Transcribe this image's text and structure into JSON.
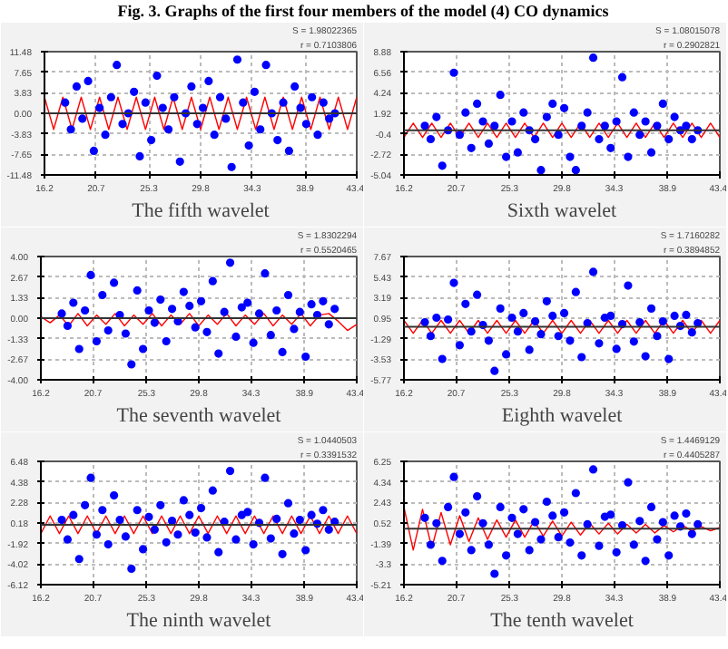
{
  "chart_data": [
    {
      "type": "scatter",
      "title": "Fig. 3. Graphs of the first four members of the model (4) CO dynamics",
      "xlabel": "The fifth wavelet",
      "grid": true,
      "marker": "circle",
      "x": [
        18.0,
        18.5,
        19.0,
        19.5,
        20.0,
        20.5,
        21.0,
        21.5,
        22.0,
        22.5,
        23.0,
        23.5,
        24.0,
        24.5,
        25.0,
        25.5,
        26.0,
        26.5,
        27.0,
        27.5,
        28.0,
        28.5,
        29.0,
        29.5,
        30.0,
        30.5,
        31.0,
        31.5,
        32.0,
        32.5,
        33.0,
        33.5,
        34.0,
        34.5,
        35.0,
        35.5,
        36.0,
        36.5,
        37.0,
        37.5,
        38.0,
        38.5,
        39.0,
        39.5,
        40.0,
        40.5,
        41.0,
        41.5
      ],
      "xlim": [
        16.2,
        43.4
      ],
      "xticks": [
        16.2,
        20.7,
        25.3,
        29.8,
        34.3,
        38.9,
        43.4
      ],
      "ylim": [
        -11.48,
        11.48
      ],
      "yticks": [
        -11.48,
        -7.65,
        -3.83,
        {
          "value": 0,
          "label": "0.00"
        },
        3.83,
        7.65,
        11.48
      ],
      "ref_lines": [
        {
          "axis": "y",
          "value": 0,
          "color": "#333333"
        }
      ],
      "annotations": [
        "S = 1.98022365",
        "r = 0.7103806"
      ],
      "series": [
        {
          "color": "#0000ff",
          "values": [
            2,
            -3,
            5,
            -1,
            6,
            -7,
            1,
            -4,
            3,
            9,
            -2,
            0,
            4,
            -8,
            2,
            -5,
            7,
            1,
            -3,
            3,
            -9,
            0,
            5,
            -2,
            1,
            6,
            -4,
            3,
            -1,
            -10,
            10,
            2,
            -6,
            4,
            -3,
            9,
            0,
            -5,
            2,
            -7,
            5,
            1,
            -2,
            3,
            -4,
            2,
            -1,
            0
          ]
        },
        {
          "type": "line",
          "color": "#ff0000",
          "x": [
            16.2,
            17.0,
            17.8,
            18.6,
            19.4,
            20.2,
            21.0,
            21.8,
            22.6,
            23.4,
            24.2,
            25.0,
            25.8,
            26.6,
            27.4,
            28.2,
            29.0,
            29.8,
            30.6,
            31.4,
            32.2,
            33.0,
            33.8,
            34.6,
            35.4,
            36.2,
            37.0,
            37.8,
            38.6,
            39.4,
            40.2,
            41.0,
            41.8,
            42.6,
            43.4
          ],
          "marker": "none",
          "values": [
            3,
            -3,
            3,
            -3,
            3,
            -3,
            3,
            -3,
            3,
            -3,
            3,
            -3,
            3,
            -3,
            3,
            -3,
            3,
            -3,
            3,
            -3,
            3,
            -3,
            3,
            -3,
            3,
            -3,
            3,
            -3,
            3,
            -3,
            3,
            -3,
            3,
            -3,
            3
          ]
        }
      ]
    },
    {
      "type": "scatter",
      "xlabel": "Sixth wavelet",
      "grid": true,
      "marker": "circle",
      "x": [
        18.0,
        18.5,
        19.0,
        19.5,
        20.0,
        20.5,
        21.0,
        21.5,
        22.0,
        22.5,
        23.0,
        23.5,
        24.0,
        24.5,
        25.0,
        25.5,
        26.0,
        26.5,
        27.0,
        27.5,
        28.0,
        28.5,
        29.0,
        29.5,
        30.0,
        30.5,
        31.0,
        31.5,
        32.0,
        32.5,
        33.0,
        33.5,
        34.0,
        34.5,
        35.0,
        35.5,
        36.0,
        36.5,
        37.0,
        37.5,
        38.0,
        38.5,
        39.0,
        39.5,
        40.0,
        40.5,
        41.0,
        41.5
      ],
      "xlim": [
        16.2,
        43.4
      ],
      "xticks": [
        16.2,
        20.7,
        25.3,
        29.8,
        34.3,
        38.9,
        43.4
      ],
      "ylim": [
        -5.04,
        8.88
      ],
      "yticks": [
        -5.04,
        -2.72,
        -0.4,
        1.92,
        4.24,
        6.56,
        8.88
      ],
      "ref_lines": [
        {
          "axis": "y",
          "value": 0,
          "color": "#333333"
        }
      ],
      "annotations": [
        "S = 1.08015078",
        "r = 0.2902821"
      ],
      "series": [
        {
          "color": "#0000ff",
          "values": [
            0.5,
            -1,
            1.5,
            -4,
            0,
            6.5,
            -0.5,
            2,
            -2,
            3,
            1,
            -1.5,
            0.5,
            4,
            -3,
            1,
            -2.5,
            2,
            0,
            -1,
            -4.5,
            1.5,
            3,
            -0.5,
            2.5,
            -3,
            -4.5,
            0.5,
            2,
            8.2,
            -1,
            0.5,
            -2,
            1,
            6,
            -3,
            2,
            -0.5,
            1,
            -2.5,
            0.5,
            3,
            -1,
            1.5,
            0,
            0.5,
            -1,
            0
          ]
        },
        {
          "type": "line",
          "color": "#ff0000",
          "x": [
            16.2,
            17.0,
            17.8,
            18.6,
            19.4,
            20.2,
            21.0,
            21.8,
            22.6,
            23.4,
            24.2,
            25.0,
            25.8,
            26.6,
            27.4,
            28.2,
            29.0,
            29.8,
            30.6,
            31.4,
            32.2,
            33.0,
            33.8,
            34.6,
            35.4,
            36.2,
            37.0,
            37.8,
            38.6,
            39.4,
            40.2,
            41.0,
            41.8,
            42.6,
            43.4
          ],
          "marker": "none",
          "values": [
            -0.8,
            0.8,
            -0.8,
            0.8,
            -0.8,
            0.8,
            -0.8,
            0.8,
            -0.8,
            0.8,
            -0.8,
            0.8,
            -0.8,
            0.8,
            -0.8,
            0.8,
            -0.8,
            0.8,
            -0.8,
            0.8,
            -0.8,
            0.8,
            -0.8,
            0.8,
            -0.8,
            0.8,
            -0.8,
            0.8,
            -0.8,
            0.8,
            -0.8,
            0.8,
            -0.8,
            0.8,
            -0.8
          ]
        }
      ]
    },
    {
      "type": "scatter",
      "xlabel": "The seventh wavelet",
      "grid": true,
      "marker": "circle",
      "x": [
        18.0,
        18.5,
        19.0,
        19.5,
        20.0,
        20.5,
        21.0,
        21.5,
        22.0,
        22.5,
        23.0,
        23.5,
        24.0,
        24.5,
        25.0,
        25.5,
        26.0,
        26.5,
        27.0,
        27.5,
        28.0,
        28.5,
        29.0,
        29.5,
        30.0,
        30.5,
        31.0,
        31.5,
        32.0,
        32.5,
        33.0,
        33.5,
        34.0,
        34.5,
        35.0,
        35.5,
        36.0,
        36.5,
        37.0,
        37.5,
        38.0,
        38.5,
        39.0,
        39.5,
        40.0,
        40.5,
        41.0,
        41.5
      ],
      "xlim": [
        16.2,
        43.4
      ],
      "xticks": [
        16.2,
        20.7,
        25.3,
        29.8,
        34.3,
        38.9,
        43.4
      ],
      "ylim": [
        -4.0,
        4.0
      ],
      "yticks": [
        {
          "value": -4,
          "label": "-4.00"
        },
        -2.67,
        -1.33,
        {
          "value": 0,
          "label": "0.00"
        },
        1.33,
        2.67,
        {
          "value": 4,
          "label": "4.00"
        }
      ],
      "ref_lines": [
        {
          "axis": "y",
          "value": 0,
          "color": "#333333"
        }
      ],
      "annotations": [
        "S = 1.8302294",
        "r = 0.5520465"
      ],
      "series": [
        {
          "color": "#0000ff",
          "values": [
            0.3,
            -0.5,
            1,
            -2,
            0.5,
            2.8,
            -1.5,
            1.5,
            -0.8,
            2.3,
            0.2,
            -1,
            -3,
            1.8,
            -2,
            0.5,
            -0.3,
            1.2,
            -1.5,
            0.6,
            -0.2,
            1.7,
            0.8,
            -0.6,
            1.1,
            -0.9,
            2.4,
            -2.3,
            0.4,
            3.6,
            -1.2,
            0.7,
            1,
            -1.6,
            0.3,
            2.9,
            -1.1,
            0.5,
            -2.2,
            1.5,
            -0.7,
            0.4,
            -2.5,
            0.9,
            0.2,
            1.1,
            -0.4,
            0.6
          ]
        },
        {
          "type": "line",
          "color": "#ff0000",
          "x": [
            16.2,
            17.0,
            17.8,
            18.6,
            19.4,
            20.2,
            21.0,
            21.8,
            22.6,
            23.4,
            24.2,
            25.0,
            25.8,
            26.6,
            27.4,
            28.2,
            29.0,
            29.8,
            30.6,
            31.4,
            32.2,
            33.0,
            33.8,
            34.6,
            35.4,
            36.2,
            37.0,
            37.8,
            38.6,
            39.4,
            40.2,
            41.0,
            41.8,
            42.6,
            43.4
          ],
          "marker": "none",
          "values": [
            0.1,
            -0.3,
            0.2,
            -0.5,
            0.3,
            -0.5,
            0.2,
            -0.4,
            0.3,
            -0.5,
            0.2,
            -0.4,
            0.3,
            -0.5,
            0.2,
            -0.4,
            0.3,
            -0.5,
            0.2,
            -0.4,
            0.3,
            -0.5,
            0.2,
            -0.4,
            0.3,
            -0.5,
            0.2,
            -0.4,
            0.3,
            -0.5,
            0.2,
            0.3,
            -0.2,
            -0.8,
            -0.4
          ]
        }
      ]
    },
    {
      "type": "scatter",
      "xlabel": "Eighth wavelet",
      "grid": true,
      "marker": "circle",
      "x": [
        18.0,
        18.5,
        19.0,
        19.5,
        20.0,
        20.5,
        21.0,
        21.5,
        22.0,
        22.5,
        23.0,
        23.5,
        24.0,
        24.5,
        25.0,
        25.5,
        26.0,
        26.5,
        27.0,
        27.5,
        28.0,
        28.5,
        29.0,
        29.5,
        30.0,
        30.5,
        31.0,
        31.5,
        32.0,
        32.5,
        33.0,
        33.5,
        34.0,
        34.5,
        35.0,
        35.5,
        36.0,
        36.5,
        37.0,
        37.5,
        38.0,
        38.5,
        39.0,
        39.5,
        40.0,
        40.5,
        41.0,
        41.5
      ],
      "xlim": [
        16.2,
        43.4
      ],
      "xticks": [
        16.2,
        20.7,
        25.3,
        29.8,
        34.3,
        38.9,
        43.4
      ],
      "ylim": [
        -5.77,
        7.67
      ],
      "yticks": [
        -5.77,
        -3.53,
        -1.29,
        0.95,
        3.19,
        5.43,
        7.67
      ],
      "ref_lines": [
        {
          "axis": "y",
          "value": 0,
          "color": "#333333"
        }
      ],
      "annotations": [
        "S = 1.7160282",
        "r = 0.3894852"
      ],
      "series": [
        {
          "color": "#0000ff",
          "values": [
            0.5,
            -1,
            1,
            -3.5,
            0.8,
            4.8,
            -2,
            2.5,
            -0.5,
            3.5,
            0.2,
            -1.5,
            -4.8,
            2,
            -3,
            1,
            -0.5,
            1.5,
            -2.5,
            0.6,
            -0.8,
            2.8,
            1.2,
            -1,
            1.5,
            -1.5,
            3.8,
            -3.3,
            0.4,
            6,
            -1.8,
            1,
            1.2,
            -2.4,
            0.3,
            4.5,
            -1.6,
            0.5,
            -3.2,
            2,
            -1,
            0.6,
            -3.5,
            1.2,
            0.1,
            1.3,
            -0.6,
            0.4
          ]
        },
        {
          "type": "line",
          "color": "#ff0000",
          "x": [
            16.2,
            17.0,
            17.8,
            18.6,
            19.4,
            20.2,
            21.0,
            21.8,
            22.6,
            23.4,
            24.2,
            25.0,
            25.8,
            26.6,
            27.4,
            28.2,
            29.0,
            29.8,
            30.6,
            31.4,
            32.2,
            33.0,
            33.8,
            34.6,
            35.4,
            36.2,
            37.0,
            37.8,
            38.6,
            39.4,
            40.2,
            41.0,
            41.8,
            42.6,
            43.4
          ],
          "marker": "none",
          "values": [
            0.7,
            -0.7,
            0.7,
            -0.7,
            0.7,
            -0.7,
            0.7,
            -0.7,
            0.7,
            -0.7,
            0.7,
            -0.7,
            0.7,
            -0.7,
            0.7,
            -0.7,
            0.7,
            -0.7,
            0.7,
            -0.7,
            0.7,
            -0.7,
            0.7,
            -0.7,
            0.7,
            -0.7,
            0.7,
            -0.7,
            0.7,
            -0.7,
            0.7,
            -0.7,
            0.7,
            -0.7,
            0.7
          ]
        }
      ]
    },
    {
      "type": "scatter",
      "xlabel": "The ninth wavelet",
      "grid": true,
      "marker": "circle",
      "x": [
        18.0,
        18.5,
        19.0,
        19.5,
        20.0,
        20.5,
        21.0,
        21.5,
        22.0,
        22.5,
        23.0,
        23.5,
        24.0,
        24.5,
        25.0,
        25.5,
        26.0,
        26.5,
        27.0,
        27.5,
        28.0,
        28.5,
        29.0,
        29.5,
        30.0,
        30.5,
        31.0,
        31.5,
        32.0,
        32.5,
        33.0,
        33.5,
        34.0,
        34.5,
        35.0,
        35.5,
        36.0,
        36.5,
        37.0,
        37.5,
        38.0,
        38.5,
        39.0,
        39.5,
        40.0,
        40.5,
        41.0,
        41.5
      ],
      "xlim": [
        16.2,
        43.4
      ],
      "xticks": [
        16.2,
        20.7,
        25.3,
        29.8,
        34.3,
        38.9,
        43.4
      ],
      "ylim": [
        -6.12,
        6.48
      ],
      "yticks": [
        -6.12,
        -4.02,
        -1.92,
        0.18,
        2.28,
        4.38,
        6.48
      ],
      "ref_lines": [
        {
          "axis": "y",
          "value": 0,
          "color": "#333333"
        }
      ],
      "annotations": [
        "S = 1.0440503",
        "r = 0.3391532"
      ],
      "series": [
        {
          "color": "#0000ff",
          "values": [
            0.5,
            -1.5,
            1,
            -3.5,
            2,
            4.8,
            -1,
            1.5,
            -2,
            3,
            0.5,
            -1.2,
            -4.5,
            1.5,
            -2.5,
            0.8,
            -0.5,
            2,
            -1.8,
            0.4,
            -1,
            2.5,
            1,
            -0.8,
            1.7,
            -1.3,
            3.5,
            -2.8,
            0.3,
            5.5,
            -1.5,
            1,
            1.3,
            -2,
            0.2,
            4.8,
            -1.4,
            0.6,
            -3,
            2.2,
            -0.9,
            0.5,
            -2.6,
            1,
            0.1,
            1.5,
            -0.5,
            0.3
          ]
        },
        {
          "type": "line",
          "color": "#ff0000",
          "x": [
            16.2,
            17.0,
            17.8,
            18.6,
            19.4,
            20.2,
            21.0,
            21.8,
            22.6,
            23.4,
            24.2,
            25.0,
            25.8,
            26.6,
            27.4,
            28.2,
            29.0,
            29.8,
            30.6,
            31.4,
            32.2,
            33.0,
            33.8,
            34.6,
            35.4,
            36.2,
            37.0,
            37.8,
            38.6,
            39.4,
            40.2,
            41.0,
            41.8,
            42.6,
            43.4
          ],
          "marker": "none",
          "values": [
            -0.9,
            0.9,
            -0.9,
            0.9,
            -0.9,
            0.9,
            -0.9,
            0.9,
            -0.9,
            0.9,
            -0.9,
            0.9,
            -0.9,
            0.9,
            -0.9,
            0.9,
            -0.9,
            0.9,
            -0.9,
            0.9,
            -0.9,
            0.9,
            -0.9,
            0.9,
            -0.9,
            0.9,
            -0.9,
            0.9,
            -0.9,
            0.9,
            -0.9,
            0.9,
            -0.9,
            0.9,
            -0.9
          ]
        }
      ]
    },
    {
      "type": "scatter",
      "xlabel": "The tenth wavelet",
      "grid": true,
      "marker": "circle",
      "x": [
        18.0,
        18.5,
        19.0,
        19.5,
        20.0,
        20.5,
        21.0,
        21.5,
        22.0,
        22.5,
        23.0,
        23.5,
        24.0,
        24.5,
        25.0,
        25.5,
        26.0,
        26.5,
        27.0,
        27.5,
        28.0,
        28.5,
        29.0,
        29.5,
        30.0,
        30.5,
        31.0,
        31.5,
        32.0,
        32.5,
        33.0,
        33.5,
        34.0,
        34.5,
        35.0,
        35.5,
        36.0,
        36.5,
        37.0,
        37.5,
        38.0,
        38.5,
        39.0,
        39.5,
        40.0,
        40.5,
        41.0,
        41.5
      ],
      "xlim": [
        16.2,
        43.4
      ],
      "xticks": [
        16.2,
        20.7,
        25.3,
        29.8,
        34.3,
        38.9,
        43.4
      ],
      "ylim": [
        -5.21,
        6.25
      ],
      "yticks": [
        -5.21,
        -3.3,
        -1.39,
        0.52,
        2.43,
        4.34,
        6.25
      ],
      "ref_lines": [
        {
          "axis": "y",
          "value": 0,
          "color": "#333333"
        }
      ],
      "annotations": [
        "S = 1.4469129",
        "r = 0.4405287"
      ],
      "series": [
        {
          "color": "#0000ff",
          "values": [
            1,
            -1.5,
            0.5,
            -3,
            2,
            4.8,
            -0.5,
            1.5,
            -2,
            3,
            0.5,
            -1.5,
            -4.2,
            2,
            -2.5,
            1,
            -0.5,
            1.8,
            -2,
            0.6,
            -1,
            2.5,
            1.2,
            -0.8,
            1.5,
            -1.3,
            3.3,
            -2.5,
            0.4,
            5.5,
            -1.6,
            1.1,
            1.3,
            -2.2,
            0.3,
            4.3,
            -1.5,
            0.7,
            -3,
            2,
            -1,
            0.6,
            -2.5,
            1.2,
            0.2,
            1.4,
            -0.5,
            0.4
          ]
        },
        {
          "type": "line",
          "color": "#ff0000",
          "x": [
            16.2,
            17.0,
            17.8,
            18.6,
            19.4,
            20.2,
            21.0,
            21.8,
            22.6,
            23.4,
            24.2,
            25.0,
            25.8,
            26.6,
            27.4,
            28.2,
            29.0,
            29.8,
            30.6,
            31.4,
            32.2,
            33.0,
            33.8,
            34.6,
            35.4,
            36.2,
            37.0,
            37.8,
            38.6,
            39.4,
            40.2,
            41.0,
            41.8,
            42.6,
            43.4
          ],
          "marker": "none",
          "values": [
            2,
            -2,
            1.8,
            -1.8,
            1.5,
            -1.5,
            1.2,
            -1.2,
            1,
            -1,
            0.8,
            -0.8,
            0.8,
            -0.8,
            0.7,
            -0.7,
            0.7,
            -0.7,
            0.6,
            -0.6,
            0.5,
            -0.5,
            0.5,
            -0.5,
            0.4,
            -0.4,
            0.4,
            -0.4,
            0.3,
            -0.3,
            0.3,
            -0.2,
            0.2,
            -0.2,
            0.1
          ]
        }
      ]
    }
  ]
}
